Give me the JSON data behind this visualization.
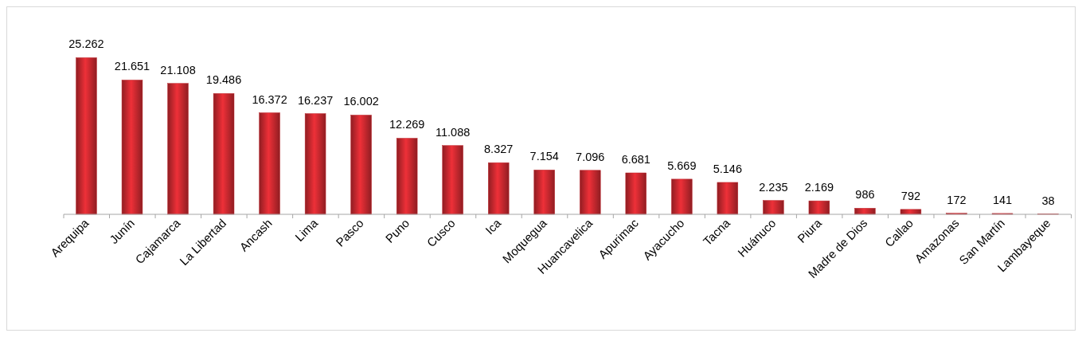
{
  "chart_data": {
    "type": "bar",
    "categories": [
      "Arequipa",
      "Junín",
      "Cajamarca",
      "La Libertad",
      "Ancash",
      "Lima",
      "Pasco",
      "Puno",
      "Cusco",
      "Ica",
      "Moquegua",
      "Huancavelica",
      "Apurimac",
      "Ayacucho",
      "Tacna",
      "Huánuco",
      "Piura",
      "Madre de Dios",
      "Callao",
      "Amazonas",
      "San Martín",
      "Lambayeque"
    ],
    "values": [
      25262,
      21651,
      21108,
      19486,
      16372,
      16237,
      16002,
      12269,
      11088,
      8327,
      7154,
      7096,
      6681,
      5669,
      5146,
      2235,
      2169,
      986,
      792,
      172,
      141,
      38
    ],
    "value_labels": [
      "25.262",
      "21.651",
      "21.108",
      "19.486",
      "16.372",
      "16.237",
      "16.002",
      "12.269",
      "11.088",
      "8.327",
      "7.154",
      "7.096",
      "6.681",
      "5.669",
      "5.146",
      "2.235",
      "2.169",
      "986",
      "792",
      "172",
      "141",
      "38"
    ],
    "color": "#c0272d"
  }
}
